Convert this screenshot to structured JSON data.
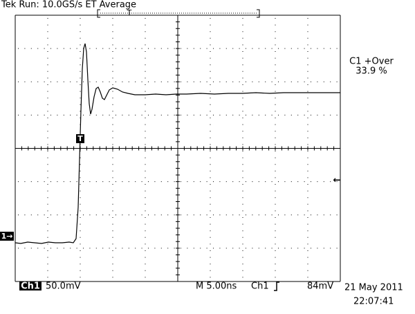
{
  "header": {
    "status": "Tek Run: 10.0GS/s ET Average",
    "trigger_position": "T"
  },
  "trigger_marker": "T",
  "measurement": {
    "label": "C1 +Over",
    "value": "33.9 %"
  },
  "channel_marker": "1→",
  "level_arrow": "←",
  "footer": {
    "channel": "Ch1",
    "scale": "50.0mV",
    "timebase": "M 5.00ns",
    "trigger_source": "Ch1",
    "trigger_level": "84mV",
    "date": "21 May 2011",
    "time": "22:07:41"
  }
}
